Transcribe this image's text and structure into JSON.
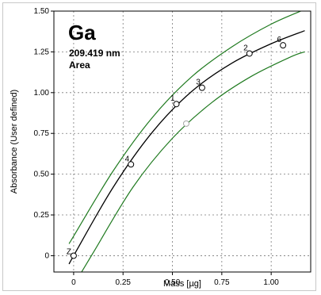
{
  "chart_data": {
    "type": "scatter",
    "element": "Ga",
    "wavelength": "209.419 nm",
    "mode": "Area",
    "xlabel": "Mass [µg]",
    "ylabel": "Absorbance (User defined)",
    "xlim": [
      -0.1,
      1.2
    ],
    "ylim": [
      -0.1,
      1.5
    ],
    "x_ticks": [
      "0",
      "0.25",
      "0.50",
      "0.75",
      "1.00"
    ],
    "x_tick_values": [
      0,
      0.25,
      0.5,
      0.75,
      1.0
    ],
    "y_ticks": [
      "0",
      "0.25",
      "0.50",
      "0.75",
      "1.00",
      "1.25",
      "1.50"
    ],
    "y_tick_values": [
      0,
      0.25,
      0.5,
      0.75,
      1.0,
      1.25,
      1.5
    ],
    "grid": true,
    "points": [
      {
        "label": "Z",
        "x": 0.0,
        "y": 0.0
      },
      {
        "label": "4",
        "x": 0.29,
        "y": 0.56
      },
      {
        "label": "1",
        "x": 0.52,
        "y": 0.93
      },
      {
        "label": "3",
        "x": 0.65,
        "y": 1.03
      },
      {
        "label": "2",
        "x": 0.89,
        "y": 1.24
      },
      {
        "label": "6",
        "x": 1.06,
        "y": 1.29
      }
    ],
    "excluded_points": [
      {
        "x": 0.57,
        "y": 0.81
      }
    ],
    "fit": {
      "x": [
        -0.02,
        0.0,
        0.2,
        0.4,
        0.6,
        0.8,
        1.0,
        1.17
      ],
      "y": [
        -0.045,
        0.0,
        0.42,
        0.76,
        1.01,
        1.18,
        1.3,
        1.38
      ]
    },
    "upper_band": {
      "x": [
        -0.02,
        0.0,
        0.2,
        0.4,
        0.6,
        0.8,
        1.0,
        1.17
      ],
      "y": [
        0.08,
        0.12,
        0.52,
        0.85,
        1.1,
        1.28,
        1.42,
        1.51
      ]
    },
    "lower_band": {
      "x": [
        0.04,
        0.1,
        0.3,
        0.5,
        0.7,
        0.9,
        1.1,
        1.17
      ],
      "y": [
        -0.1,
        0.02,
        0.42,
        0.72,
        0.94,
        1.1,
        1.22,
        1.25
      ]
    },
    "colors": {
      "fit": "#000000",
      "band": "#1f7a1f",
      "grid": "#7a7a7a",
      "excluded": "#a8a8a8",
      "point": "#000000"
    }
  }
}
